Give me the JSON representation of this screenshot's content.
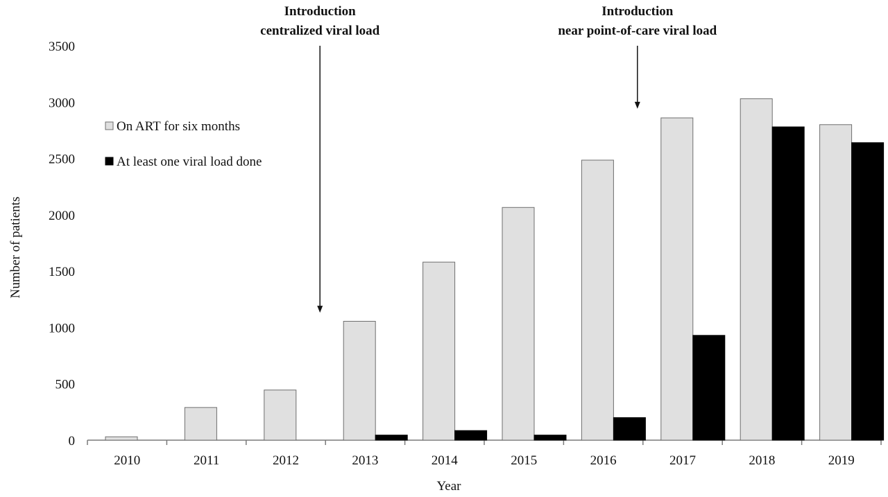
{
  "chart_data": {
    "type": "bar",
    "title": "",
    "xlabel": "Year",
    "ylabel": "Number of patients",
    "ylim": [
      0,
      3500
    ],
    "yticks": [
      0,
      500,
      1000,
      1500,
      2000,
      2500,
      3000,
      3500
    ],
    "grid": false,
    "legend_position": "top-left",
    "categories": [
      "2010",
      "2011",
      "2012",
      "2013",
      "2014",
      "2015",
      "2016",
      "2017",
      "2018",
      "2019"
    ],
    "series": [
      {
        "name": "On ART for six months",
        "color": "#e0e0e0",
        "values": [
          30,
          290,
          445,
          1055,
          1580,
          2065,
          2485,
          2860,
          3030,
          2800
        ]
      },
      {
        "name": "At least one viral load done",
        "color": "#000000",
        "values": [
          0,
          0,
          0,
          45,
          85,
          45,
          200,
          930,
          2780,
          2640
        ]
      }
    ],
    "annotations": [
      {
        "line1": "Introduction",
        "line2": "centralized viral load",
        "category": "2013",
        "side": "left",
        "points_to": 1180
      },
      {
        "line1": "Introduction",
        "line2": "near point-of-care viral load",
        "category": "2017",
        "side": "left",
        "points_to": 2990
      }
    ]
  }
}
